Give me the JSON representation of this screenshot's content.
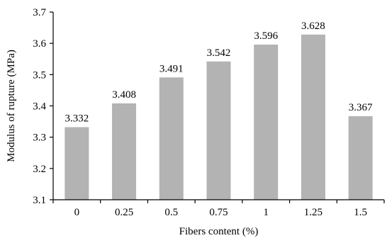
{
  "chart_data": {
    "type": "bar",
    "title": "",
    "xlabel": "Fibers content (%)",
    "ylabel": "Modulus of rupture (MPa)",
    "categories": [
      "0",
      "0.25",
      "0.5",
      "0.75",
      "1",
      "1.25",
      "1.5"
    ],
    "values": [
      3.332,
      3.408,
      3.491,
      3.542,
      3.596,
      3.628,
      3.367
    ],
    "data_labels": [
      "3.332",
      "3.408",
      "3.491",
      "3.542",
      "3.596",
      "3.628",
      "3.367"
    ],
    "ylim": [
      3.1,
      3.7
    ],
    "yticks": [
      "3.1",
      "3.2",
      "3.3",
      "3.4",
      "3.5",
      "3.6",
      "3.7"
    ],
    "grid": false,
    "legend": "none",
    "bar_color": "#b3b3b3"
  }
}
